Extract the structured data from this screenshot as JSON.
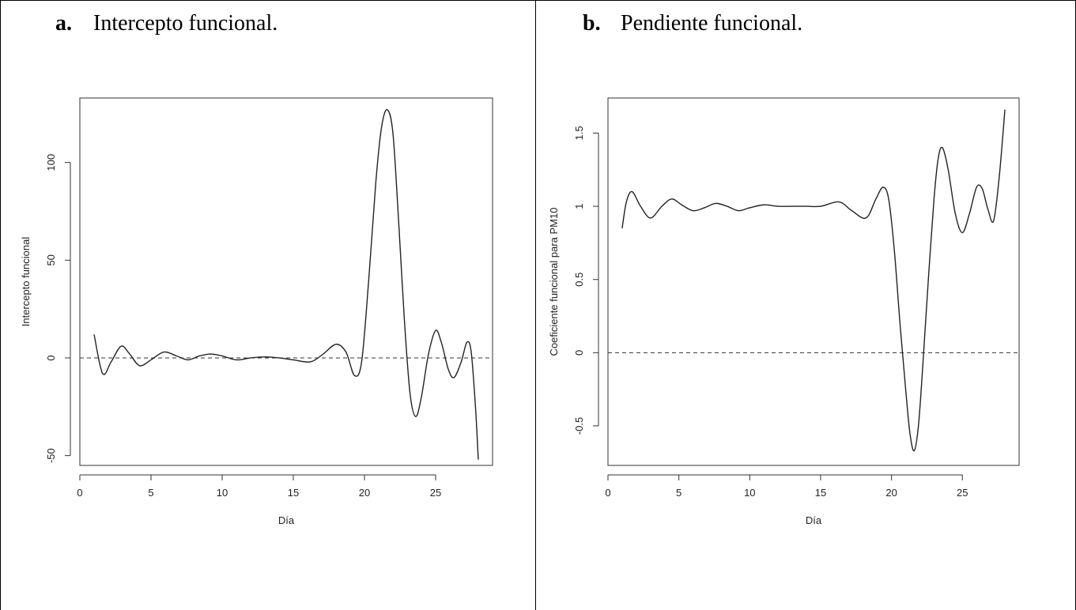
{
  "panels": [
    {
      "letter": "a.",
      "caption": "Intercepto funcional."
    },
    {
      "letter": "b.",
      "caption": "Pendiente funcional."
    }
  ],
  "chart_data": [
    {
      "type": "line",
      "xlabel": "Día",
      "ylabel": "Intercepto funcional",
      "xlim": [
        0,
        29
      ],
      "ylim": [
        -55,
        133
      ],
      "xticks": [
        0,
        5,
        10,
        15,
        20,
        25
      ],
      "yticks": [
        -50,
        0,
        50,
        100
      ],
      "hline": 0,
      "series": [
        {
          "x": [
            1.0,
            1.6,
            2.2,
            2.9,
            3.5,
            4.2,
            5.0,
            5.9,
            6.8,
            7.6,
            8.4,
            9.2,
            10.0,
            11.0,
            12.0,
            13.0,
            14.0,
            15.0,
            16.2,
            17.1,
            18.0,
            18.7,
            19.3,
            19.8,
            20.3,
            20.8,
            21.2,
            21.6,
            22.0,
            22.4,
            22.8,
            23.2,
            23.6,
            24.0,
            24.5,
            25.0,
            25.4,
            25.9,
            26.3,
            26.8,
            27.2,
            27.5,
            27.8,
            28.0
          ],
          "y": [
            12,
            -8,
            -2,
            6,
            2,
            -4,
            -1,
            3,
            1,
            -1,
            1,
            2,
            1,
            -1,
            0,
            0.5,
            0,
            -1,
            -2,
            2,
            7,
            3,
            -9,
            -2,
            40,
            90,
            118,
            127,
            115,
            70,
            20,
            -18,
            -30,
            -20,
            2,
            14,
            8,
            -6,
            -10,
            -2,
            8,
            3,
            -25,
            -52
          ]
        }
      ]
    },
    {
      "type": "line",
      "xlabel": "Día",
      "ylabel": "Coeficiente funcional para PM10",
      "xlim": [
        0,
        29
      ],
      "ylim": [
        -0.77,
        1.74
      ],
      "xticks": [
        0,
        5,
        10,
        15,
        20,
        25
      ],
      "yticks": [
        -0.5,
        0.0,
        0.5,
        1.0,
        1.5
      ],
      "hline": 0,
      "series": [
        {
          "x": [
            1.0,
            1.3,
            1.7,
            2.3,
            3.0,
            3.8,
            4.5,
            5.2,
            6.0,
            6.8,
            7.6,
            8.4,
            9.2,
            10.0,
            11.0,
            12.0,
            13.0,
            14.0,
            15.0,
            16.3,
            17.2,
            18.2,
            18.9,
            19.4,
            19.8,
            20.2,
            20.6,
            21.0,
            21.3,
            21.6,
            21.9,
            22.2,
            22.6,
            23.0,
            23.3,
            23.6,
            24.0,
            24.5,
            25.0,
            25.5,
            26.0,
            26.4,
            26.8,
            27.2,
            27.6,
            28.0
          ],
          "y": [
            0.85,
            1.03,
            1.1,
            1.0,
            0.92,
            1.0,
            1.05,
            1.01,
            0.97,
            0.99,
            1.02,
            1.0,
            0.97,
            0.99,
            1.01,
            1.0,
            1.0,
            1.0,
            1.0,
            1.03,
            0.97,
            0.92,
            1.05,
            1.13,
            1.05,
            0.7,
            0.2,
            -0.25,
            -0.55,
            -0.67,
            -0.5,
            -0.1,
            0.5,
            1.05,
            1.33,
            1.4,
            1.25,
            0.95,
            0.82,
            0.95,
            1.13,
            1.12,
            0.98,
            0.9,
            1.2,
            1.66
          ]
        }
      ]
    }
  ]
}
